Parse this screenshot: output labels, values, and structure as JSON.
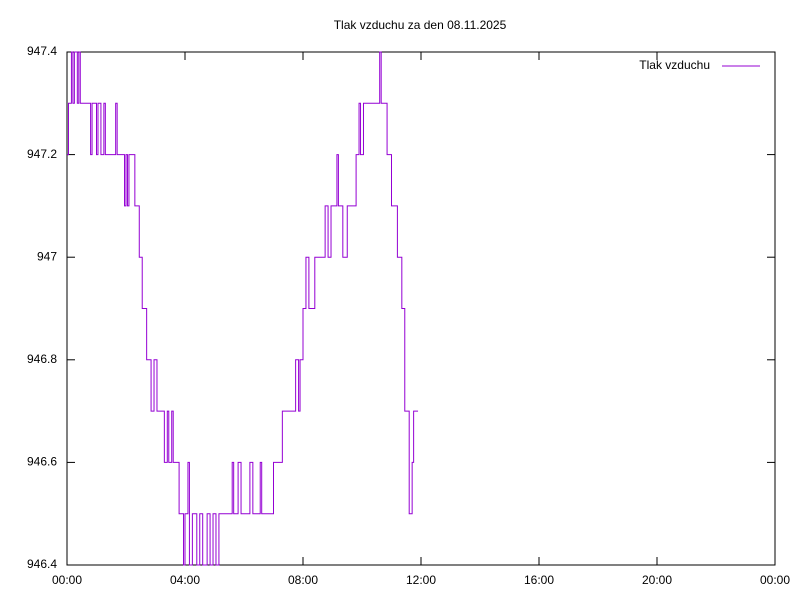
{
  "chart_data": {
    "type": "line",
    "title": "Tlak vzduchu za den 08.11.2025",
    "series": [
      {
        "name": "Tlak vzduchu",
        "color": "#9400d3",
        "x": [
          0,
          0.05,
          0.15,
          0.2,
          0.25,
          0.35,
          0.4,
          0.45,
          0.8,
          0.85,
          1.0,
          1.05,
          1.15,
          1.25,
          1.3,
          1.65,
          1.7,
          1.95,
          2.0,
          2.05,
          2.1,
          2.3,
          2.45,
          2.55,
          2.7,
          2.85,
          2.95,
          3.05,
          3.3,
          3.4,
          3.45,
          3.55,
          3.6,
          3.8,
          3.95,
          4.0,
          4.1,
          4.15,
          4.25,
          4.4,
          4.5,
          4.6,
          4.75,
          4.85,
          4.95,
          5.05,
          5.15,
          5.6,
          5.65,
          5.8,
          5.9,
          6.2,
          6.3,
          6.55,
          6.6,
          7.0,
          7.3,
          7.75,
          7.85,
          7.9,
          8.0,
          8.1,
          8.2,
          8.4,
          8.75,
          8.85,
          8.95,
          9.15,
          9.2,
          9.35,
          9.5,
          9.8,
          9.9,
          9.95,
          10.05,
          10.6,
          10.65,
          10.85,
          11.0,
          11.2,
          11.35,
          11.45,
          11.6,
          11.7,
          11.75,
          11.9
        ],
        "values": [
          947.2,
          947.3,
          947.4,
          947.3,
          947.4,
          947.3,
          947.4,
          947.3,
          947.2,
          947.3,
          947.2,
          947.3,
          947.2,
          947.3,
          947.2,
          947.3,
          947.2,
          947.1,
          947.2,
          947.1,
          947.2,
          947.1,
          947.0,
          946.9,
          946.8,
          946.7,
          946.8,
          946.7,
          946.6,
          946.7,
          946.6,
          946.7,
          946.6,
          946.5,
          946.4,
          946.5,
          946.6,
          946.4,
          946.5,
          946.4,
          946.5,
          946.4,
          946.5,
          946.4,
          946.5,
          946.4,
          946.5,
          946.6,
          946.5,
          946.6,
          946.5,
          946.6,
          946.5,
          946.6,
          946.5,
          946.6,
          946.7,
          946.8,
          946.7,
          946.8,
          946.9,
          947.0,
          946.9,
          947.0,
          947.1,
          947.0,
          947.1,
          947.2,
          947.1,
          947.0,
          947.1,
          947.2,
          947.3,
          947.2,
          947.3,
          947.4,
          947.3,
          947.2,
          947.1,
          947.0,
          946.9,
          946.7,
          946.5,
          946.6,
          946.7,
          946.7
        ]
      }
    ],
    "xlim": [
      0,
      24
    ],
    "xticks": [
      {
        "value": 0,
        "label": "00:00"
      },
      {
        "value": 4,
        "label": "04:00"
      },
      {
        "value": 8,
        "label": "08:00"
      },
      {
        "value": 12,
        "label": "12:00"
      },
      {
        "value": 16,
        "label": "16:00"
      },
      {
        "value": 20,
        "label": "20:00"
      },
      {
        "value": 24,
        "label": "00:00"
      }
    ],
    "ylim": [
      946.4,
      947.4
    ],
    "yticks": [
      946.4,
      946.6,
      946.8,
      947,
      947.2,
      947.4
    ],
    "legend": "top-right",
    "grid": false
  }
}
